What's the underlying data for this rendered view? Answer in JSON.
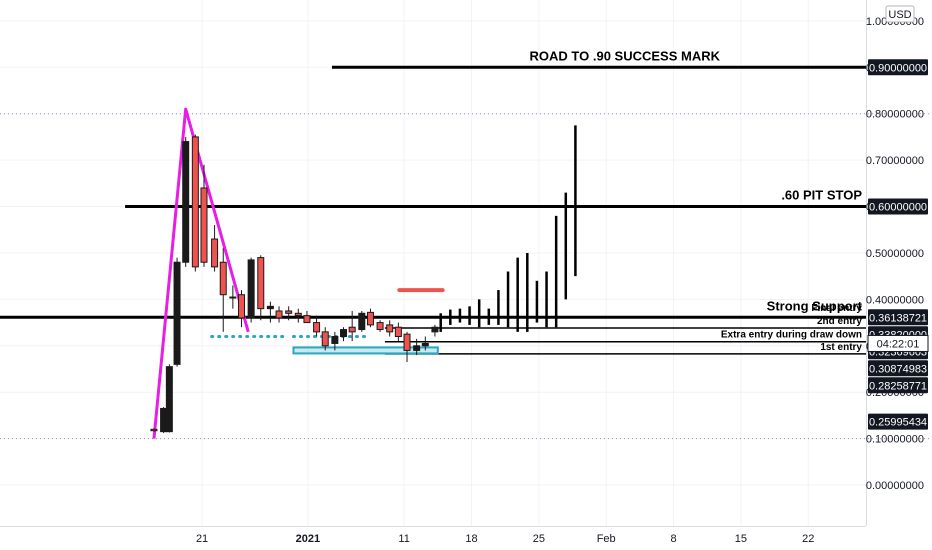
{
  "currency_badge": "USD",
  "countdown": "04:22:01",
  "colors": {
    "up": "#1a1a1a",
    "down": "#ef5350",
    "magenta": "#e91ee5",
    "teal": "#26a8c0",
    "red_line": "#ef5350",
    "line": "#000000",
    "grid": "#f0f3fa"
  },
  "chart_data": {
    "type": "candlestick",
    "price_axis": {
      "ticks": [
        1.0,
        0.9,
        0.8,
        0.7,
        0.6,
        0.5,
        0.4,
        0.3,
        0.2,
        0.1,
        0.0
      ],
      "tick_labels": [
        "1.00000000",
        "0.90000000",
        "0.80000000",
        "0.70000000",
        "0.60000000",
        "0.50000000",
        "0.40000000",
        "0.30000000",
        "0.20000000",
        "0.10000000",
        "0.00000000"
      ],
      "range": [
        -0.14,
        1.045
      ]
    },
    "time_axis": {
      "labels": [
        "21",
        "2021",
        "11",
        "18",
        "25",
        "Feb",
        "8",
        "15",
        "22"
      ],
      "label_days": [
        21,
        32,
        42,
        49,
        56,
        63,
        70,
        77,
        84
      ],
      "range": [
        0,
        90
      ]
    },
    "candles": [
      {
        "d": 16.0,
        "o": 0.12,
        "h": 0.122,
        "l": 0.115,
        "c": 0.117
      },
      {
        "d": 17.0,
        "o": 0.115,
        "h": 0.168,
        "l": 0.112,
        "c": 0.165
      },
      {
        "d": 17.6,
        "o": 0.115,
        "h": 0.26,
        "l": 0.113,
        "c": 0.255
      },
      {
        "d": 18.4,
        "o": 0.26,
        "h": 0.49,
        "l": 0.255,
        "c": 0.48
      },
      {
        "d": 19.3,
        "o": 0.48,
        "h": 0.75,
        "l": 0.47,
        "c": 0.74
      },
      {
        "d": 20.3,
        "o": 0.75,
        "h": 0.755,
        "l": 0.46,
        "c": 0.47
      },
      {
        "d": 21.2,
        "o": 0.64,
        "h": 0.69,
        "l": 0.47,
        "c": 0.48
      },
      {
        "d": 22.3,
        "o": 0.53,
        "h": 0.56,
        "l": 0.46,
        "c": 0.47
      },
      {
        "d": 23.2,
        "o": 0.48,
        "h": 0.51,
        "l": 0.33,
        "c": 0.41
      },
      {
        "d": 24.2,
        "o": 0.405,
        "h": 0.43,
        "l": 0.38,
        "c": 0.405
      },
      {
        "d": 25.1,
        "o": 0.41,
        "h": 0.42,
        "l": 0.34,
        "c": 0.36
      },
      {
        "d": 26.1,
        "o": 0.36,
        "h": 0.49,
        "l": 0.35,
        "c": 0.485
      },
      {
        "d": 27.1,
        "o": 0.49,
        "h": 0.495,
        "l": 0.355,
        "c": 0.38
      },
      {
        "d": 28.1,
        "o": 0.38,
        "h": 0.395,
        "l": 0.35,
        "c": 0.385
      },
      {
        "d": 29.0,
        "o": 0.375,
        "h": 0.385,
        "l": 0.35,
        "c": 0.36
      },
      {
        "d": 30.0,
        "o": 0.375,
        "h": 0.385,
        "l": 0.355,
        "c": 0.37
      },
      {
        "d": 31.0,
        "o": 0.37,
        "h": 0.38,
        "l": 0.35,
        "c": 0.365
      },
      {
        "d": 31.9,
        "o": 0.365,
        "h": 0.375,
        "l": 0.355,
        "c": 0.35
      },
      {
        "d": 32.9,
        "o": 0.35,
        "h": 0.365,
        "l": 0.32,
        "c": 0.33
      },
      {
        "d": 33.8,
        "o": 0.33,
        "h": 0.34,
        "l": 0.29,
        "c": 0.3
      },
      {
        "d": 34.8,
        "o": 0.305,
        "h": 0.33,
        "l": 0.29,
        "c": 0.32
      },
      {
        "d": 35.7,
        "o": 0.32,
        "h": 0.34,
        "l": 0.31,
        "c": 0.335
      },
      {
        "d": 36.6,
        "o": 0.34,
        "h": 0.375,
        "l": 0.31,
        "c": 0.33
      },
      {
        "d": 37.6,
        "o": 0.335,
        "h": 0.375,
        "l": 0.33,
        "c": 0.37
      },
      {
        "d": 38.5,
        "o": 0.372,
        "h": 0.38,
        "l": 0.34,
        "c": 0.345
      },
      {
        "d": 39.5,
        "o": 0.35,
        "h": 0.355,
        "l": 0.33,
        "c": 0.335
      },
      {
        "d": 40.5,
        "o": 0.345,
        "h": 0.355,
        "l": 0.32,
        "c": 0.33
      },
      {
        "d": 41.4,
        "o": 0.34,
        "h": 0.35,
        "l": 0.31,
        "c": 0.32
      },
      {
        "d": 42.3,
        "o": 0.325,
        "h": 0.33,
        "l": 0.265,
        "c": 0.29
      },
      {
        "d": 43.3,
        "o": 0.29,
        "h": 0.315,
        "l": 0.28,
        "c": 0.3
      },
      {
        "d": 44.2,
        "o": 0.3,
        "h": 0.32,
        "l": 0.29,
        "c": 0.305
      },
      {
        "d": 45.2,
        "o": 0.33,
        "h": 0.345,
        "l": 0.32,
        "c": 0.34
      }
    ],
    "projection_bars": [
      {
        "d": 45.8,
        "l": 0.33,
        "h": 0.37
      },
      {
        "d": 46.8,
        "l": 0.345,
        "h": 0.378
      },
      {
        "d": 47.8,
        "l": 0.35,
        "h": 0.38
      },
      {
        "d": 48.8,
        "l": 0.345,
        "h": 0.385
      },
      {
        "d": 49.8,
        "l": 0.34,
        "h": 0.4
      },
      {
        "d": 50.8,
        "l": 0.345,
        "h": 0.38
      },
      {
        "d": 51.8,
        "l": 0.345,
        "h": 0.42
      },
      {
        "d": 52.8,
        "l": 0.34,
        "h": 0.46
      },
      {
        "d": 53.8,
        "l": 0.33,
        "h": 0.49
      },
      {
        "d": 54.8,
        "l": 0.33,
        "h": 0.5
      },
      {
        "d": 55.8,
        "l": 0.35,
        "h": 0.44
      },
      {
        "d": 56.8,
        "l": 0.34,
        "h": 0.46
      },
      {
        "d": 57.8,
        "l": 0.34,
        "h": 0.58
      },
      {
        "d": 58.8,
        "l": 0.4,
        "h": 0.63
      },
      {
        "d": 59.8,
        "l": 0.45,
        "h": 0.775
      }
    ],
    "horizontal_levels": [
      {
        "price": 0.9,
        "from_day": 34.5,
        "label": "ROAD TO .90 SUCCESS MARK",
        "badge": "0.90000000"
      },
      {
        "price": 0.6,
        "from_day": 13.0,
        "label": ".60 PIT STOP",
        "badge": "0.60000000"
      },
      {
        "price": 0.36138721,
        "from_day": 0.0,
        "label": "Strong Support",
        "badge": "0.36138721"
      },
      {
        "price": 0.3382,
        "from_day": 40.0,
        "label": "Final entry",
        "badge": "0.33820000"
      },
      {
        "price": 0.3382,
        "from_day": 40.0,
        "label": "2nd entry",
        "badge": ""
      },
      {
        "price": 0.30874983,
        "from_day": 40.0,
        "label": "Extra entry during draw down",
        "badge": "0.30874983"
      },
      {
        "price": 0.28258771,
        "from_day": 40.0,
        "label": "1st entry",
        "badge": "0.28258771"
      }
    ],
    "other_price_tags": [
      "0.32369603",
      "0.25995434"
    ],
    "magenta_path": [
      {
        "d": 16.0,
        "p": 0.1
      },
      {
        "d": 19.3,
        "p": 0.81
      },
      {
        "d": 25.8,
        "p": 0.33
      }
    ],
    "teal_dotted": {
      "from_day": 22.0,
      "to_day": 30.0,
      "price": 0.32
    },
    "teal_box": {
      "from_day": 30.5,
      "to_day": 45.5,
      "price": 0.29
    },
    "red_range": {
      "from_day": 41.5,
      "to_day": 46.0,
      "price": 0.42
    }
  }
}
